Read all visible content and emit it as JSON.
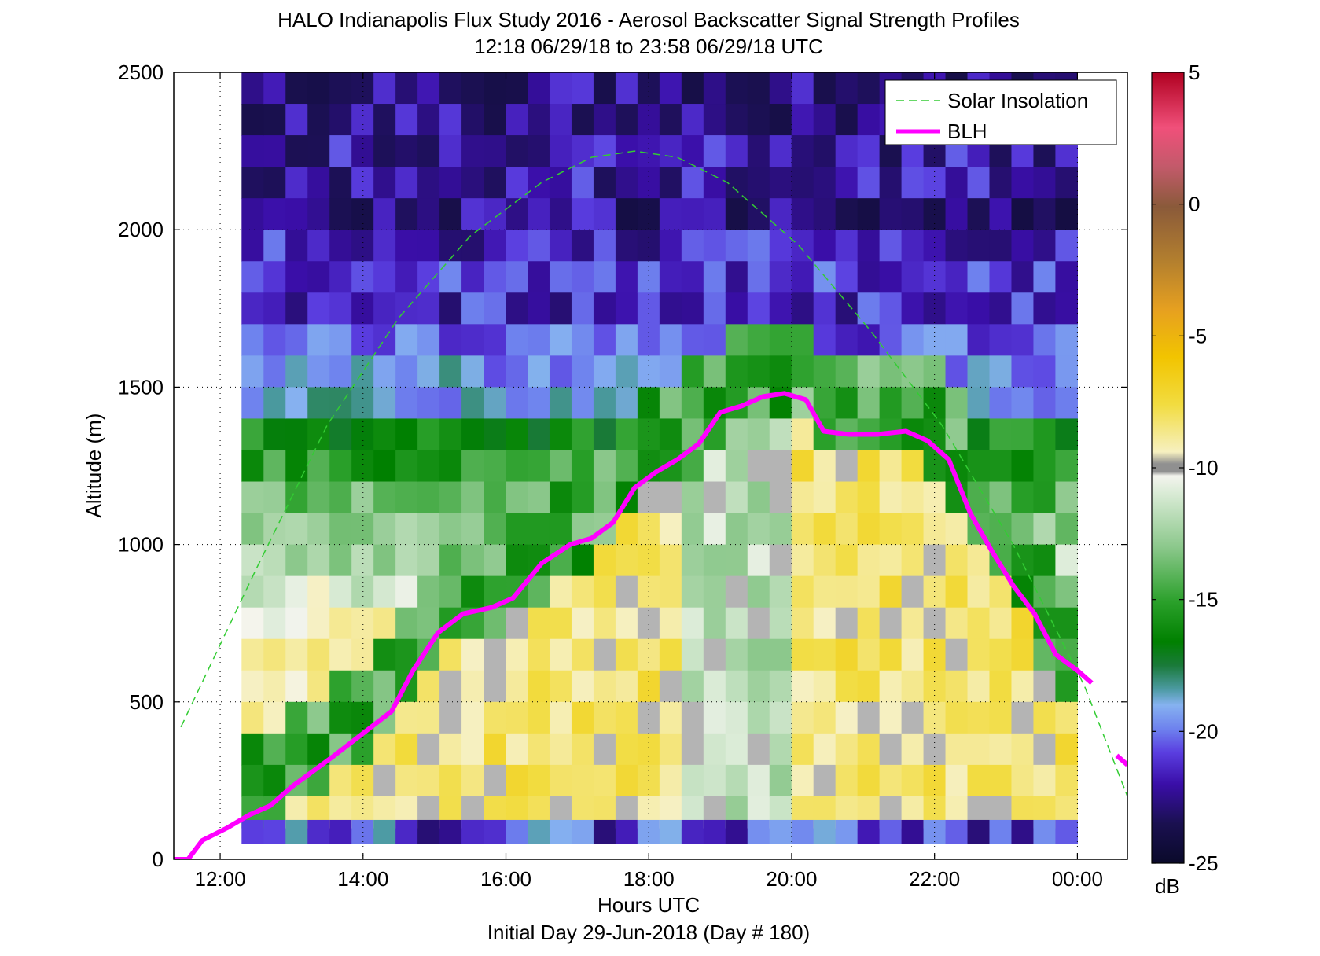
{
  "chart_data": {
    "type": "heatmap",
    "title": "HALO Indianapolis Flux Study 2016 - Aerosol Backscatter Signal Strength Profiles",
    "subtitle": "12:18 06/29/18 to 23:58 06/29/18  UTC",
    "xlabel": "Hours UTC",
    "ylabel": "Altitude (m)",
    "footer": "Initial Day 29-Jun-2018 (Day # 180)",
    "xlim_hours": [
      11.35,
      24.7
    ],
    "ylim": [
      0,
      2500
    ],
    "x_ticks": [
      {
        "value": 12,
        "label": "12:00"
      },
      {
        "value": 14,
        "label": "14:00"
      },
      {
        "value": 16,
        "label": "16:00"
      },
      {
        "value": 18,
        "label": "18:00"
      },
      {
        "value": 20,
        "label": "20:00"
      },
      {
        "value": 22,
        "label": "22:00"
      },
      {
        "value": 24,
        "label": "00:00"
      }
    ],
    "y_ticks": [
      {
        "value": 0,
        "label": "0"
      },
      {
        "value": 500,
        "label": "500"
      },
      {
        "value": 1000,
        "label": "1000"
      },
      {
        "value": 1500,
        "label": "1500"
      },
      {
        "value": 2000,
        "label": "2000"
      },
      {
        "value": 2500,
        "label": "2500"
      }
    ],
    "grid": true,
    "colorbar": {
      "unit": "dB",
      "range": [
        -25,
        5
      ],
      "ticks": [
        {
          "value": 5,
          "label": "5"
        },
        {
          "value": 0,
          "label": "0"
        },
        {
          "value": -5,
          "label": "-5"
        },
        {
          "value": -10,
          "label": "-10"
        },
        {
          "value": -15,
          "label": "-15"
        },
        {
          "value": -20,
          "label": "-20"
        },
        {
          "value": -25,
          "label": "-25"
        }
      ]
    },
    "legend": {
      "placement": "top-right",
      "entries": [
        {
          "label": "Solar Insolation",
          "color": "#33cc33",
          "style": "dashed"
        },
        {
          "label": "BLH",
          "color": "#ff00ff",
          "style": "solid"
        }
      ]
    },
    "heatmap": {
      "x_start_hours": 12.3,
      "x_end_hours": 24.0,
      "y_start_m": 50,
      "y_end_m": 2500,
      "columns": 38,
      "row_altitude_m": [
        2450,
        2350,
        2250,
        2150,
        2050,
        1950,
        1850,
        1750,
        1650,
        1550,
        1450,
        1350,
        1250,
        1150,
        1050,
        950,
        850,
        750,
        650,
        550,
        450,
        350,
        250,
        150,
        75
      ],
      "background_db_by_altitude": [
        [
          -22.5,
          -22.5,
          -22,
          -22,
          -22.5,
          -21.5,
          -21,
          -21.5,
          -20.5,
          -19.5,
          -19,
          -16,
          -15,
          -14,
          -13,
          -12,
          -11,
          -10,
          -9,
          -8.5,
          -8,
          -8,
          -8,
          -9.5,
          -17
        ]
      ],
      "missing_value_color": "#b4b4b4"
    },
    "blh": {
      "name": "BLH",
      "hours": [
        11.35,
        11.55,
        11.75,
        12.1,
        12.4,
        12.7,
        13.0,
        13.3,
        13.6,
        14.0,
        14.4,
        14.7,
        15.05,
        15.4,
        15.8,
        16.1,
        16.5,
        16.9,
        17.2,
        17.5,
        17.8,
        18.1,
        18.4,
        18.7,
        19.0,
        19.3,
        19.6,
        19.9,
        20.2,
        20.45,
        20.8,
        21.2,
        21.6,
        21.9,
        22.2,
        22.5,
        22.8,
        23.1,
        23.4,
        23.7,
        24.0,
        24.2
      ],
      "values": [
        0,
        0,
        60,
        100,
        140,
        170,
        230,
        280,
        330,
        400,
        470,
        600,
        720,
        780,
        800,
        830,
        940,
        1000,
        1020,
        1070,
        1180,
        1230,
        1270,
        1320,
        1420,
        1440,
        1470,
        1480,
        1460,
        1360,
        1350,
        1350,
        1360,
        1330,
        1270,
        1100,
        980,
        870,
        780,
        650,
        600,
        560
      ],
      "tail_hours": [
        24.55,
        24.7
      ],
      "tail_values": [
        330,
        300
      ]
    },
    "solar_insolation": {
      "name": "Solar Insolation",
      "note_scale": "relative",
      "peak_hour": 17.8,
      "peak_altitude_m": 2250,
      "hours": [
        11.45,
        12.5,
        13.5,
        14.5,
        15.5,
        16.5,
        17.2,
        17.8,
        18.4,
        19.1,
        20.1,
        21.1,
        22.1,
        23.1,
        24.1,
        24.7
      ],
      "values": [
        420,
        920,
        1380,
        1720,
        1980,
        2150,
        2230,
        2250,
        2230,
        2150,
        1950,
        1680,
        1380,
        1000,
        550,
        200
      ]
    }
  }
}
